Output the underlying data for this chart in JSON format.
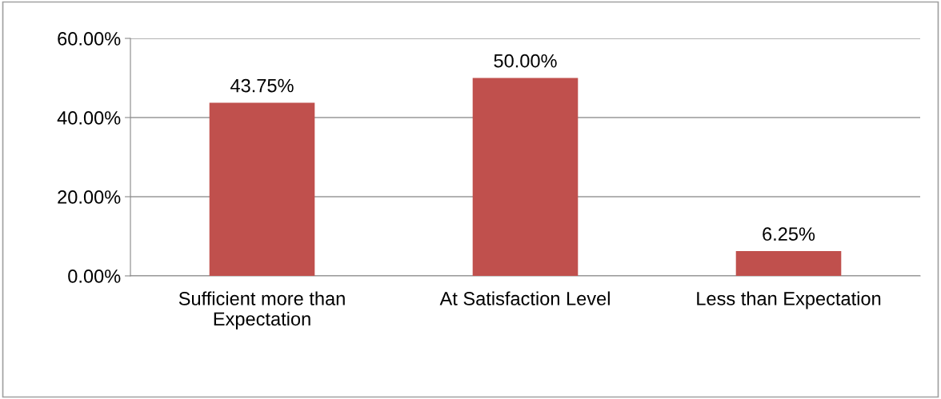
{
  "chart_data": {
    "type": "bar",
    "categories": [
      "Sufficient more than\nExpectation",
      "At Satisfaction Level",
      "Less than Expectation"
    ],
    "values": [
      43.75,
      50.0,
      6.25
    ],
    "value_labels": [
      "43.75%",
      "50.00%",
      "6.25%"
    ],
    "color": "#c0504d",
    "ylim": [
      0,
      60
    ],
    "yticks": [
      {
        "value": 0,
        "label": "0.00%"
      },
      {
        "value": 20,
        "label": "20.00%"
      },
      {
        "value": 40,
        "label": "40.00%"
      },
      {
        "value": 60,
        "label": "60.00%"
      }
    ],
    "grid": "y"
  }
}
